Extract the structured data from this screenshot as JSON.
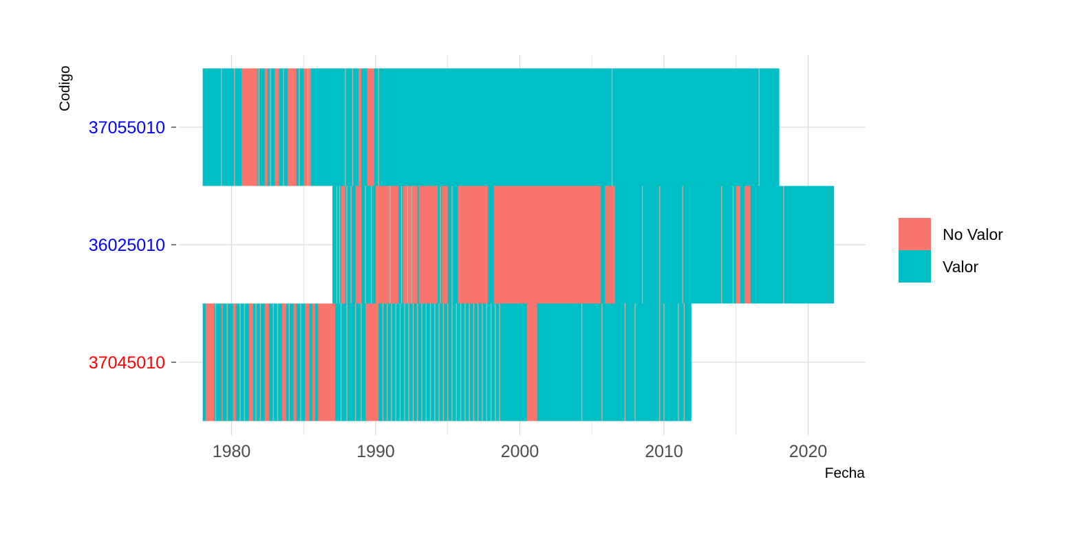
{
  "chart_data": {
    "type": "heatmap",
    "xlabel": "Fecha",
    "ylabel": "Codigo",
    "xlim": [
      1977.3,
      2024.0
    ],
    "x_ticks": [
      1980,
      1990,
      2000,
      2010,
      2020
    ],
    "x_tick_labels": [
      "1980",
      "1990",
      "2000",
      "2010",
      "2020"
    ],
    "colors": {
      "No Valor": "#F8766D",
      "Valor": "#00BFC4",
      "grid": "#d9d9d9"
    },
    "legend": {
      "placement": "right",
      "entries": [
        "No Valor",
        "Valor"
      ]
    },
    "rows": [
      {
        "codigo": "37055010",
        "label_color": "#0000FF",
        "start": 1978.0,
        "end": 2018.0,
        "default": "Valor",
        "no_valor_ranges": [
          [
            1980.7,
            1981.8
          ],
          [
            1982.3,
            1982.5
          ],
          [
            1983.0,
            1983.3
          ],
          [
            1983.9,
            1984.5
          ],
          [
            1985.0,
            1985.5
          ],
          [
            1988.8,
            1989.0
          ],
          [
            1989.4,
            1989.9
          ]
        ],
        "gaps": [
          1979.3,
          1980.2,
          1981.9,
          1982.7,
          1983.6,
          1984.7,
          1985.3,
          1987.9,
          1988.4,
          1990.2,
          2006.4,
          2016.6
        ]
      },
      {
        "codigo": "36025010",
        "label_color": "#0000FF",
        "start": 1987.0,
        "end": 2021.8,
        "default": "Valor",
        "no_valor_ranges": [
          [
            1987.6,
            1987.9
          ],
          [
            1988.6,
            1989.0
          ],
          [
            1990.0,
            1991.6
          ],
          [
            1991.9,
            1992.9
          ],
          [
            1993.0,
            1994.3
          ],
          [
            1994.6,
            1995.0
          ],
          [
            1995.7,
            1997.8
          ],
          [
            1998.2,
            2005.6
          ],
          [
            2005.9,
            2006.6
          ],
          [
            2015.0,
            2015.3
          ],
          [
            2015.6,
            2016.0
          ]
        ],
        "gaps": [
          1987.3,
          1987.5,
          1988.0,
          1988.3,
          1989.3,
          1989.7,
          1991.0,
          1991.8,
          1992.2,
          1992.5,
          1994.5,
          1995.3,
          2008.5,
          2009.7,
          2011.3,
          2014.0,
          2014.8,
          2018.3
        ]
      },
      {
        "codigo": "37045010",
        "label_color": "#FF0000",
        "start": 1978.0,
        "end": 2011.9,
        "default": "Valor",
        "no_valor_ranges": [
          [
            1978.2,
            1978.8
          ],
          [
            1979.3,
            1979.4
          ],
          [
            1980.1,
            1980.3
          ],
          [
            1981.2,
            1981.5
          ],
          [
            1982.3,
            1982.6
          ],
          [
            1983.5,
            1983.8
          ],
          [
            1984.3,
            1984.5
          ],
          [
            1985.1,
            1985.4
          ],
          [
            1985.6,
            1985.8
          ],
          [
            1986.0,
            1987.2
          ],
          [
            1989.3,
            1990.2
          ],
          [
            2000.5,
            2001.2
          ]
        ],
        "gaps": [
          1978.9,
          1979.7,
          1980.6,
          1980.9,
          1981.7,
          1982.0,
          1982.9,
          1983.2,
          1984.0,
          1984.8,
          1987.6,
          1988.0,
          1988.6,
          1989.0,
          1990.5,
          1990.8,
          1991.1,
          1991.4,
          1991.7,
          1992.0,
          1992.3,
          1992.6,
          1992.9,
          1993.2,
          1993.5,
          1993.8,
          1994.1,
          1994.4,
          1994.7,
          1995.0,
          1995.3,
          1995.6,
          1995.9,
          1996.2,
          1996.5,
          1996.8,
          1997.1,
          1997.4,
          1997.7,
          1998.0,
          1998.3,
          1998.6,
          2004.3,
          2005.7,
          2007.3,
          2008.0,
          2009.7,
          2010.0,
          2011.0,
          2011.4
        ]
      }
    ]
  }
}
